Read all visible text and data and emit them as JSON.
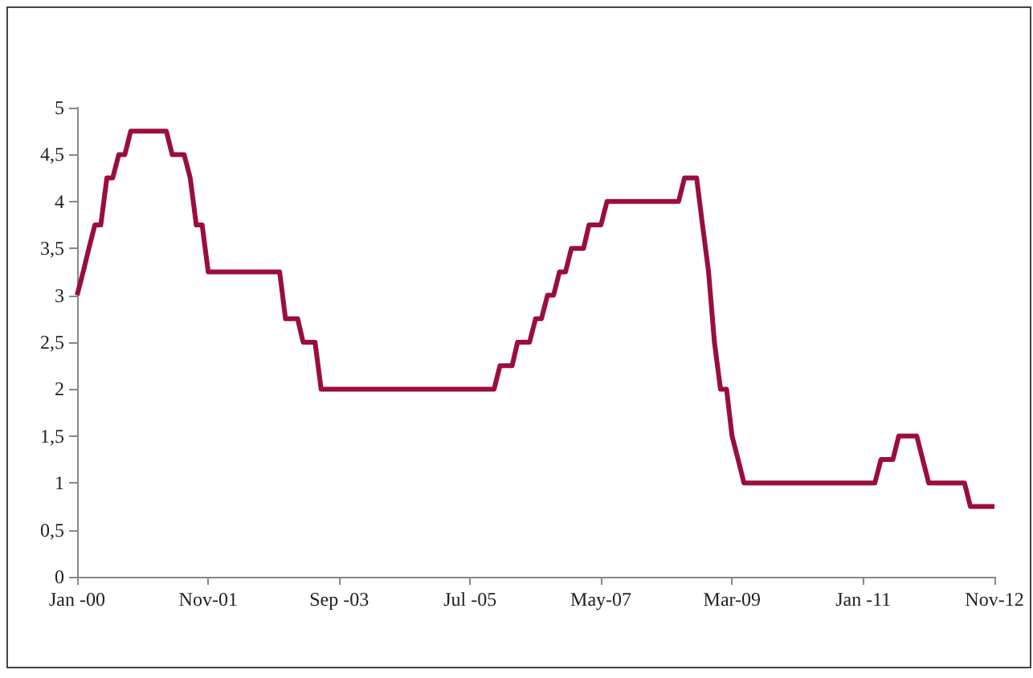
{
  "chart_data": {
    "type": "line",
    "line_style": "solid",
    "marker": "none",
    "grid": false,
    "x": [
      "2000-01",
      "2000-02",
      "2000-03",
      "2000-04",
      "2000-05",
      "2000-06",
      "2000-07",
      "2000-08",
      "2000-09",
      "2000-10",
      "2001-04",
      "2001-05",
      "2001-07",
      "2001-08",
      "2001-09",
      "2001-10",
      "2001-11",
      "2002-11",
      "2002-12",
      "2003-02",
      "2003-03",
      "2003-05",
      "2003-06",
      "2005-11",
      "2005-12",
      "2006-02",
      "2006-03",
      "2006-05",
      "2006-06",
      "2006-07",
      "2006-08",
      "2006-09",
      "2006-10",
      "2006-11",
      "2006-12",
      "2007-02",
      "2007-03",
      "2007-05",
      "2007-06",
      "2008-06",
      "2008-07",
      "2008-09",
      "2008-10",
      "2008-11",
      "2008-12",
      "2009-01",
      "2009-02",
      "2009-03",
      "2009-04",
      "2009-05",
      "2011-03",
      "2011-04",
      "2011-06",
      "2011-07",
      "2011-10",
      "2011-12",
      "2012-06",
      "2012-07",
      "2012-11"
    ],
    "series": [
      {
        "color": "#9b0d3f",
        "values": [
          3.0,
          3.25,
          3.5,
          3.75,
          3.75,
          4.25,
          4.25,
          4.5,
          4.5,
          4.75,
          4.75,
          4.5,
          4.5,
          4.25,
          3.75,
          3.75,
          3.25,
          3.25,
          2.75,
          2.75,
          2.5,
          2.5,
          2.0,
          2.0,
          2.25,
          2.25,
          2.5,
          2.5,
          2.75,
          2.75,
          3.0,
          3.0,
          3.25,
          3.25,
          3.5,
          3.5,
          3.75,
          3.75,
          4.0,
          4.0,
          4.25,
          4.25,
          3.75,
          3.25,
          2.5,
          2.0,
          2.0,
          1.5,
          1.25,
          1.0,
          1.0,
          1.25,
          1.25,
          1.5,
          1.5,
          1.0,
          1.0,
          0.75,
          0.75
        ]
      }
    ],
    "xlim": [
      "2000-01",
      "2012-11"
    ],
    "xticks": [
      {
        "value": "2000-01",
        "label": "Jan -00"
      },
      {
        "value": "2001-11",
        "label": "Nov-01"
      },
      {
        "value": "2003-09",
        "label": "Sep -03"
      },
      {
        "value": "2005-07",
        "label": "Jul -05"
      },
      {
        "value": "2007-05",
        "label": "May-07"
      },
      {
        "value": "2009-03",
        "label": "Mar-09"
      },
      {
        "value": "2011-01",
        "label": "Jan -11"
      },
      {
        "value": "2012-11",
        "label": "Nov-12"
      }
    ],
    "ylim": [
      0,
      5
    ],
    "yticks": [
      0,
      {
        "value": 0.5,
        "label": "0,5"
      },
      1,
      {
        "value": 1.5,
        "label": "1,5"
      },
      2,
      {
        "value": 2.5,
        "label": "2,5"
      },
      3,
      {
        "value": 3.5,
        "label": "3,5"
      },
      4,
      {
        "value": 4.5,
        "label": "4,5"
      },
      5
    ]
  }
}
